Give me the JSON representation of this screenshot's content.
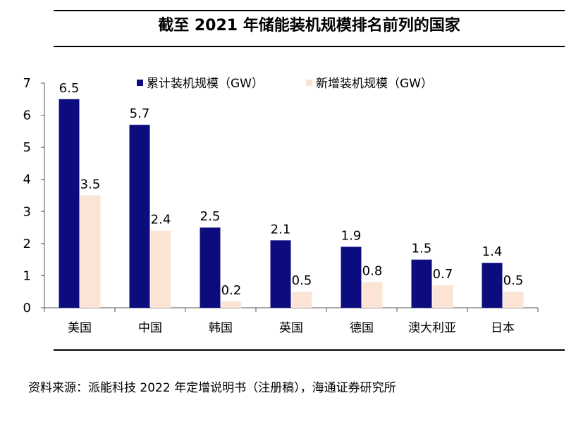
{
  "chart_data": {
    "type": "bar",
    "title": "截至 2021 年储能装机规模排名前列的国家",
    "categories": [
      "美国",
      "中国",
      "韩国",
      "英国",
      "德国",
      "澳大利亚",
      "日本"
    ],
    "series": [
      {
        "name": "累计装机规模（GW）",
        "values": [
          6.5,
          5.7,
          2.5,
          2.1,
          1.9,
          1.5,
          1.4
        ],
        "color": "#0c0c7f"
      },
      {
        "name": "新增装机规模（GW）",
        "values": [
          3.5,
          2.4,
          0.2,
          0.5,
          0.8,
          0.7,
          0.5
        ],
        "color": "#fbe3d6"
      }
    ],
    "yticks": [
      0,
      1,
      2,
      3,
      4,
      5,
      6,
      7
    ],
    "ylim": [
      0,
      7
    ],
    "xlabel": "",
    "ylabel": "",
    "grid": false,
    "legend": "top"
  },
  "source": "资料来源：派能科技 2022 年定增说明书（注册稿），海通证券研究所"
}
